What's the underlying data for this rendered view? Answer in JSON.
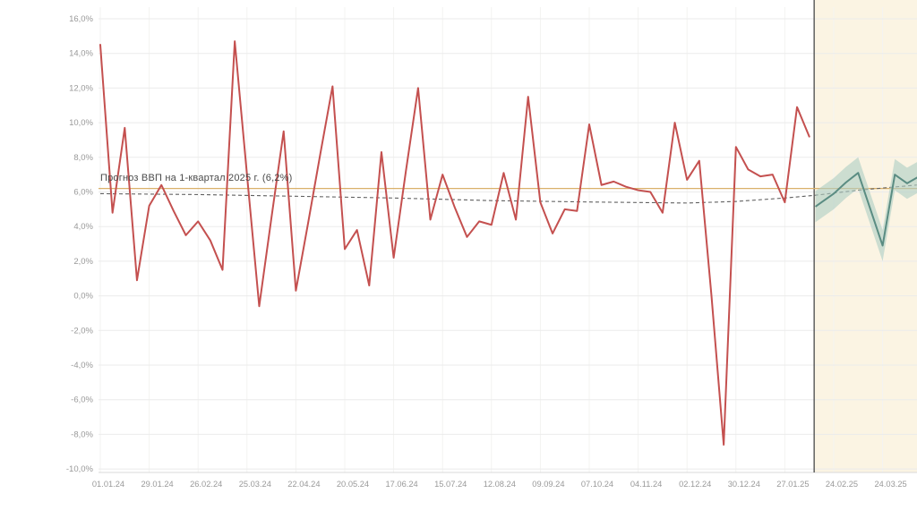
{
  "chart_data": {
    "type": "line",
    "title": "",
    "annotation": "Прогноз ВВП на 1-квартал 2025 г. (6,2%)",
    "reference_line": {
      "value": 6.2
    },
    "ylim": [
      -10,
      16
    ],
    "grid": "horizontal-and-faint-vertical",
    "legend_position": "none",
    "y_ticks": [
      {
        "value": 16,
        "label": "16,0%"
      },
      {
        "value": 14,
        "label": "14,0%"
      },
      {
        "value": 12,
        "label": "12,0%"
      },
      {
        "value": 10,
        "label": "10,0%"
      },
      {
        "value": 8,
        "label": "8,0%"
      },
      {
        "value": 6,
        "label": "6,0%"
      },
      {
        "value": 4,
        "label": "4,0%"
      },
      {
        "value": 2,
        "label": "2,0%"
      },
      {
        "value": 0,
        "label": "0,0%"
      },
      {
        "value": -2,
        "label": "-2,0%"
      },
      {
        "value": -4,
        "label": "-4,0%"
      },
      {
        "value": -6,
        "label": "-6,0%"
      },
      {
        "value": -8,
        "label": "-8,0%"
      },
      {
        "value": -10,
        "label": "-10,0%"
      }
    ],
    "x_ticks": [
      {
        "week": 0,
        "label": "01.01.24"
      },
      {
        "week": 4,
        "label": "29.01.24"
      },
      {
        "week": 8,
        "label": "26.02.24"
      },
      {
        "week": 12,
        "label": "25.03.24"
      },
      {
        "week": 16,
        "label": "22.04.24"
      },
      {
        "week": 20,
        "label": "20.05.24"
      },
      {
        "week": 24,
        "label": "17.06.24"
      },
      {
        "week": 28,
        "label": "15.07.24"
      },
      {
        "week": 32,
        "label": "12.08.24"
      },
      {
        "week": 36,
        "label": "09.09.24"
      },
      {
        "week": 40,
        "label": "07.10.24"
      },
      {
        "week": 44,
        "label": "04.11.24"
      },
      {
        "week": 48,
        "label": "02.12.24"
      },
      {
        "week": 52,
        "label": "30.12.24"
      },
      {
        "week": 56,
        "label": "27.01.25"
      },
      {
        "week": 60,
        "label": "24.02.25"
      },
      {
        "week": 64,
        "label": "24.03.25"
      }
    ],
    "series": [
      {
        "name": "history",
        "type": "line",
        "start_week": 0,
        "interval_weeks": 1,
        "values": [
          14.5,
          4.8,
          9.7,
          0.9,
          5.2,
          6.4,
          4.9,
          3.5,
          4.3,
          3.2,
          1.5,
          14.7,
          7.0,
          -0.6,
          4.5,
          9.5,
          0.3,
          4.2,
          8.2,
          12.1,
          2.7,
          3.8,
          0.6,
          8.3,
          2.2,
          7.2,
          12.0,
          4.4,
          7.0,
          5.1,
          3.4,
          4.3,
          4.1,
          7.1,
          4.4,
          11.5,
          5.4,
          3.6,
          5.0,
          4.9,
          9.9,
          6.4,
          6.6,
          6.3,
          6.1,
          6.0,
          4.8,
          10.0,
          6.7,
          7.8,
          0.0,
          -8.6,
          8.6,
          7.3,
          6.9,
          7.0,
          5.4,
          10.9,
          9.2
        ]
      },
      {
        "name": "trend",
        "type": "dashed-line",
        "points": [
          [
            0,
            5.9
          ],
          [
            8,
            5.85
          ],
          [
            16,
            5.75
          ],
          [
            24,
            5.65
          ],
          [
            32,
            5.5
          ],
          [
            40,
            5.42
          ],
          [
            48,
            5.36
          ],
          [
            52,
            5.45
          ],
          [
            56,
            5.65
          ],
          [
            58.4,
            5.8
          ],
          [
            62,
            6.1
          ],
          [
            66.8,
            6.4
          ]
        ]
      },
      {
        "name": "forecast",
        "type": "line-with-band",
        "band_halfwidth": 0.9,
        "points": [
          [
            58.5,
            5.15
          ],
          [
            59,
            5.4
          ],
          [
            60,
            5.9
          ],
          [
            61,
            6.55
          ],
          [
            62,
            7.1
          ],
          [
            63,
            5.0
          ],
          [
            64,
            2.9
          ],
          [
            65,
            7.0
          ],
          [
            66,
            6.5
          ],
          [
            67,
            6.9
          ]
        ]
      }
    ],
    "forecast_region": {
      "start_week": 58.4
    }
  },
  "colors": {
    "history": "#c4504f",
    "trend": "#606060",
    "reference": "#d9b06a",
    "forecast": "#5a8c82",
    "band": "#aecdc3",
    "forecast_bg": "#fbf4e3",
    "divider": "#555555",
    "grid": "#ebebeb",
    "grid_vertical": "#f3f3f1",
    "axis": "#d9d9d9",
    "tick_text": "#999999",
    "annotation_text": "#4a4a4a"
  }
}
